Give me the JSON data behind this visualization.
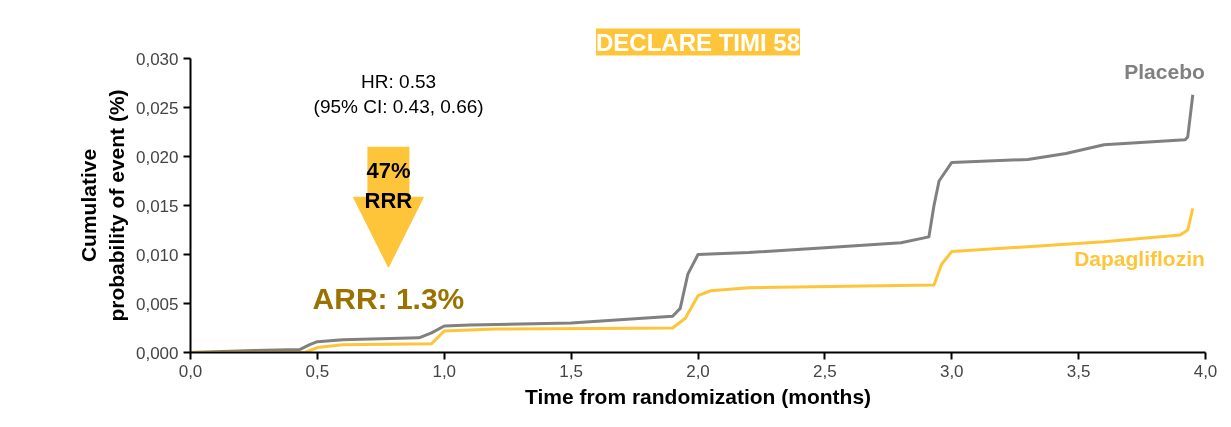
{
  "chart_data": {
    "type": "line",
    "title": "DECLARE TIMI 58",
    "xlabel": "Time from randomization (months)",
    "ylabel": "Cumulative probability of event (%)",
    "xlim": [
      0,
      4
    ],
    "ylim": [
      0,
      0.03
    ],
    "xticks": [
      {
        "value": 0,
        "label": "0,0"
      },
      {
        "value": 0.5,
        "label": "0,5"
      },
      {
        "value": 1,
        "label": "1,0"
      },
      {
        "value": 1.5,
        "label": "1,5"
      },
      {
        "value": 2,
        "label": "2,0"
      },
      {
        "value": 2.5,
        "label": "2,5"
      },
      {
        "value": 3,
        "label": "3,0"
      },
      {
        "value": 3.5,
        "label": "3,5"
      },
      {
        "value": 4,
        "label": "4,0"
      }
    ],
    "yticks": [
      {
        "value": 0,
        "label": "0,000"
      },
      {
        "value": 0.005,
        "label": "0,005"
      },
      {
        "value": 0.01,
        "label": "0,010"
      },
      {
        "value": 0.015,
        "label": "0,015"
      },
      {
        "value": 0.02,
        "label": "0,020"
      },
      {
        "value": 0.025,
        "label": "0,025"
      },
      {
        "value": 0.03,
        "label": "0,030"
      }
    ],
    "grid": false,
    "legend": false,
    "series": [
      {
        "name": "Placebo",
        "color": "#808080",
        "x": [
          0,
          0.25,
          0.43,
          0.47,
          0.5,
          0.6,
          0.9,
          0.95,
          1.0,
          1.1,
          1.5,
          1.9,
          1.93,
          1.96,
          2.0,
          2.2,
          2.5,
          2.8,
          2.91,
          2.93,
          2.95,
          3.0,
          3.3,
          3.45,
          3.6,
          3.92,
          3.93,
          3.95
        ],
        "values": [
          0,
          0.0002,
          0.0003,
          0.0008,
          0.0011,
          0.0013,
          0.0015,
          0.002,
          0.0027,
          0.0028,
          0.003,
          0.0037,
          0.0045,
          0.008,
          0.01,
          0.0102,
          0.0107,
          0.0112,
          0.0118,
          0.015,
          0.0175,
          0.0194,
          0.0197,
          0.0203,
          0.0212,
          0.0217,
          0.022,
          0.0263
        ]
      },
      {
        "name": "Dapagliflozin",
        "color": "#ffc53a",
        "x": [
          0,
          0.45,
          0.5,
          0.6,
          0.95,
          1.0,
          1.2,
          1.9,
          1.95,
          2.0,
          2.05,
          2.2,
          2.93,
          2.96,
          3.0,
          3.3,
          3.6,
          3.9,
          3.93,
          3.95
        ],
        "values": [
          0,
          0,
          0.0005,
          0.0008,
          0.0009,
          0.0022,
          0.0024,
          0.0025,
          0.0035,
          0.0058,
          0.0063,
          0.0066,
          0.0069,
          0.009,
          0.0103,
          0.0108,
          0.0113,
          0.012,
          0.0125,
          0.0147
        ]
      }
    ],
    "annotations": [
      "HR: 0.53\n(95% CI: 0.43, 0.66)",
      "47%\nRRR",
      "ARR: 1.3%"
    ]
  }
}
